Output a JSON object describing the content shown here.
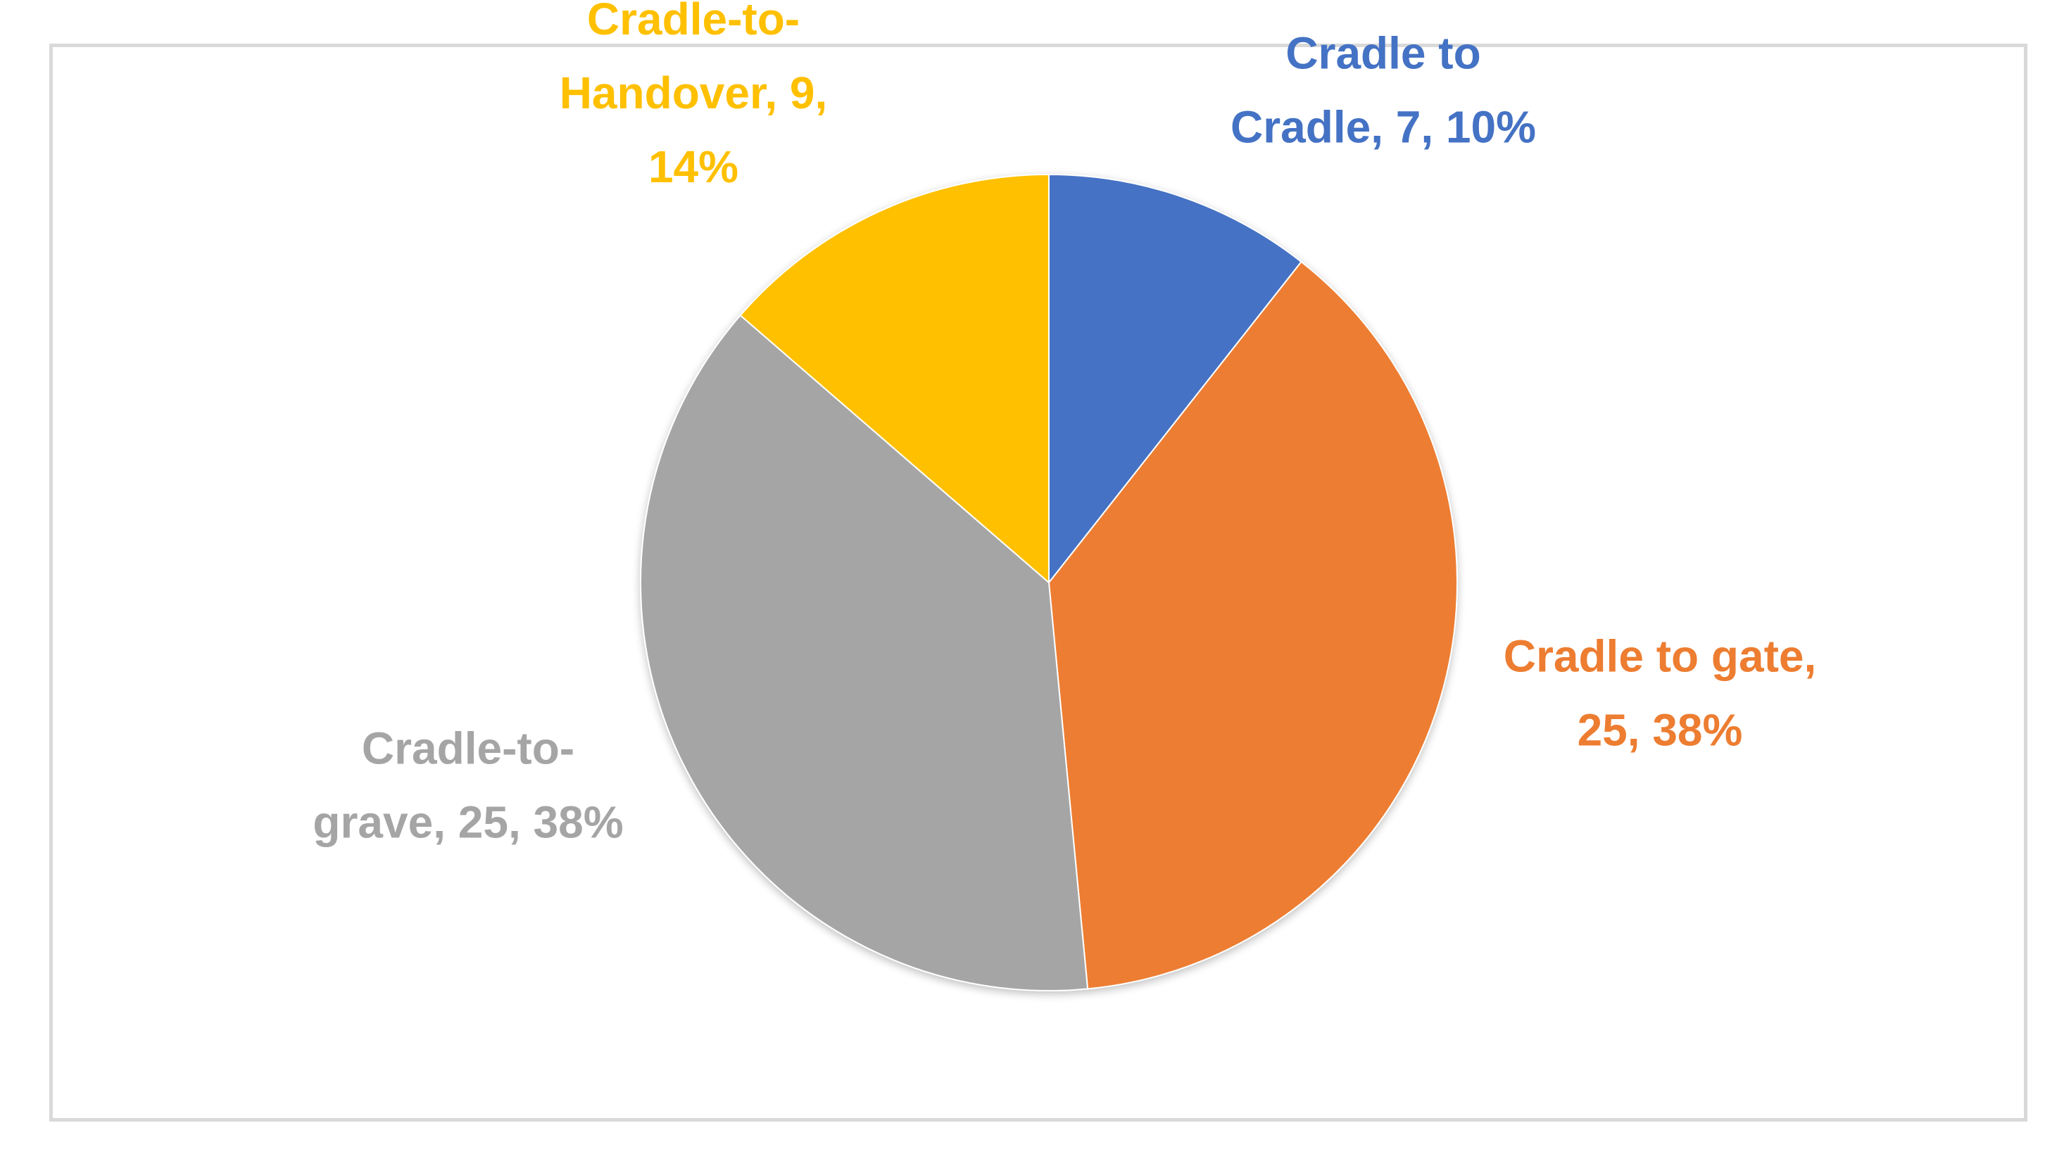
{
  "chart_data": {
    "type": "pie",
    "title": "",
    "slices": [
      {
        "name": "Cradle to Cradle",
        "value": 7,
        "percent": "10%",
        "color": "#4472C4",
        "label_lines": [
          "Cradle to",
          "Cradle, 7, 10%"
        ]
      },
      {
        "name": "Cradle to gate",
        "value": 25,
        "percent": "38%",
        "color": "#ED7D31",
        "label_lines": [
          "Cradle to gate,",
          "25, 38%"
        ]
      },
      {
        "name": "Cradle-to-grave",
        "value": 25,
        "percent": "38%",
        "color": "#A5A5A5",
        "label_lines": [
          "Cradle-to-",
          "grave, 25, 38%"
        ]
      },
      {
        "name": "Cradle-to-Handover",
        "value": 9,
        "percent": "14%",
        "color": "#FFC000",
        "label_lines": [
          "Cradle-to-",
          "Handover, 9,",
          "14%"
        ]
      }
    ],
    "start_angle_deg": 0,
    "direction": "clockwise",
    "legend": "none",
    "data_labels": "outside"
  }
}
